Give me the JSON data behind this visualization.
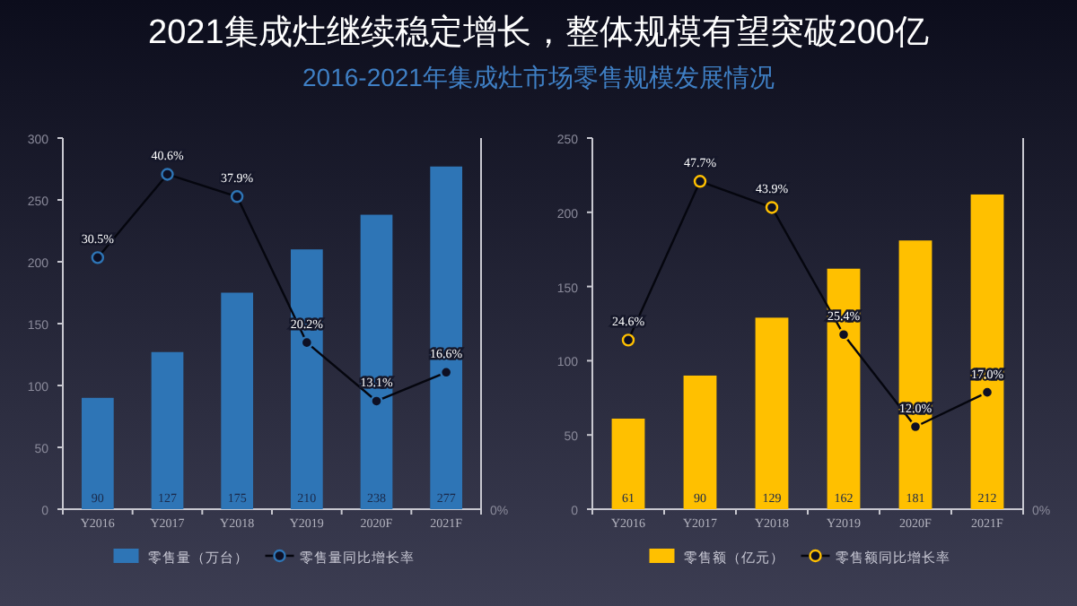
{
  "chart_data": [
    {
      "type": "bar",
      "title": "2021集成灶继续稳定增长，整体规模有望突破200亿",
      "subtitle": "2016-2021年集成灶市场零售规模发展情况",
      "categories": [
        "Y2016",
        "Y2017",
        "Y2018",
        "Y2019",
        "2020F",
        "2021F"
      ],
      "series": [
        {
          "name": "零售量（万台）",
          "color": "#2e75b6",
          "values": [
            90,
            127,
            175,
            210,
            238,
            277
          ],
          "data_labels": true
        },
        {
          "name": "零售量同比增长率",
          "type": "line",
          "axis": "y2",
          "color": "#2e75b6",
          "marker": "circle",
          "values": [
            30.5,
            40.6,
            37.9,
            20.2,
            13.1,
            16.6
          ],
          "value_labels": [
            "30.5%",
            "40.6%",
            "37.9%",
            "20.2%",
            "13.1%",
            "16.6%"
          ]
        }
      ],
      "ylim": [
        0,
        300
      ],
      "yticks": [
        0,
        50,
        100,
        150,
        200,
        250,
        300
      ],
      "y2lim": [
        0,
        45
      ],
      "annotations": [
        "0%"
      ],
      "legend": "bottom"
    },
    {
      "type": "bar",
      "categories": [
        "Y2016",
        "Y2017",
        "Y2018",
        "Y2019",
        "2020F",
        "2021F"
      ],
      "series": [
        {
          "name": "零售额（亿元）",
          "color": "#ffc000",
          "values": [
            61,
            90,
            129,
            162,
            181,
            212
          ],
          "data_labels": true
        },
        {
          "name": "零售额同比增长率",
          "type": "line",
          "axis": "y2",
          "color": "#ffc000",
          "marker": "circle",
          "values": [
            24.6,
            47.7,
            43.9,
            25.4,
            12.0,
            17.0
          ],
          "value_labels": [
            "24.6%",
            "47.7%",
            "43.9%",
            "25.4%",
            "12.0%",
            "17.0%"
          ]
        }
      ],
      "ylim": [
        0,
        250
      ],
      "yticks": [
        0,
        50,
        100,
        150,
        200,
        250
      ],
      "y2lim": [
        0,
        54
      ],
      "annotations": [
        "0%"
      ],
      "legend": "bottom"
    }
  ]
}
